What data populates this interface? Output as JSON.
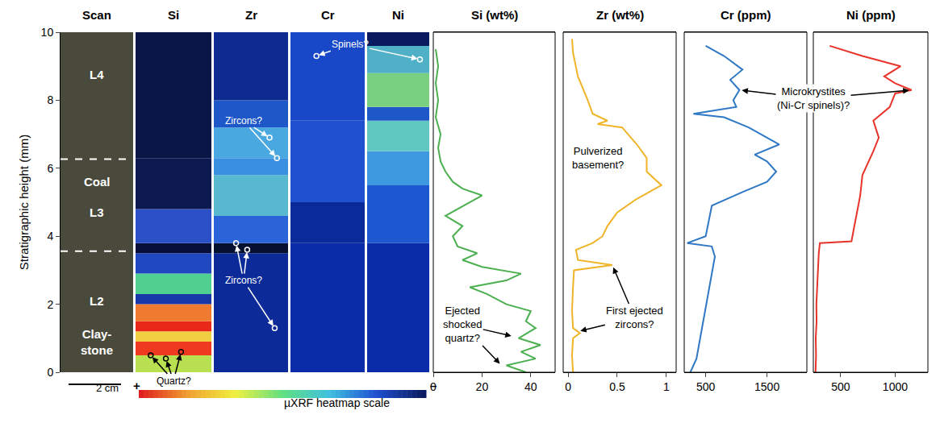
{
  "chart_data": {
    "type": "line",
    "y_title": "Stratigraphic height (mm)",
    "ylim": [
      0,
      10
    ],
    "yticks": [
      0,
      2,
      4,
      6,
      8,
      10
    ],
    "grid": false,
    "panels": [
      {
        "title": "Scan",
        "kind": "scan",
        "color": "#4a4a3c",
        "tick_labels": false,
        "line_style": "dash",
        "boundaries": [
          3.56,
          6.27
        ],
        "layer_labels": [
          {
            "text": "L4",
            "y": 8.75
          },
          {
            "text": "Coal",
            "y": 5.6
          },
          {
            "text": "L3",
            "y": 4.7
          },
          {
            "text": "L2",
            "y": 2.1
          },
          {
            "text": "Clay-\nstone",
            "y": 0.9
          }
        ]
      },
      {
        "title": "Si",
        "kind": "image",
        "tick_labels": false,
        "bands": [
          {
            "y0": 0,
            "y1": 0.5,
            "color": "#b8e050"
          },
          {
            "y0": 0.5,
            "y1": 0.9,
            "color": "#f03a20"
          },
          {
            "y0": 0.9,
            "y1": 1.2,
            "color": "#f0d040"
          },
          {
            "y0": 1.2,
            "y1": 1.5,
            "color": "#e82818"
          },
          {
            "y0": 1.5,
            "y1": 2.0,
            "color": "#f07a30"
          },
          {
            "y0": 2.0,
            "y1": 2.3,
            "color": "#1838a8"
          },
          {
            "y0": 2.3,
            "y1": 2.9,
            "color": "#50d090"
          },
          {
            "y0": 2.9,
            "y1": 3.5,
            "color": "#2048c0"
          },
          {
            "y0": 3.5,
            "y1": 3.8,
            "color": "#08103a"
          },
          {
            "y0": 3.8,
            "y1": 4.8,
            "color": "#2a50c8"
          },
          {
            "y0": 4.8,
            "y1": 6.3,
            "color": "#0c1850"
          },
          {
            "y0": 6.3,
            "y1": 10,
            "color": "#0a1548"
          }
        ]
      },
      {
        "title": "Zr",
        "kind": "image",
        "tick_labels": false,
        "bands": [
          {
            "y0": 0,
            "y1": 3.5,
            "color": "#0c2a98"
          },
          {
            "y0": 3.5,
            "y1": 3.8,
            "color": "#061030"
          },
          {
            "y0": 3.8,
            "y1": 4.6,
            "color": "#2a64d8"
          },
          {
            "y0": 4.6,
            "y1": 5.8,
            "color": "#58b8d0"
          },
          {
            "y0": 5.8,
            "y1": 6.3,
            "color": "#3a90e0"
          },
          {
            "y0": 6.3,
            "y1": 7.2,
            "color": "#4aa8e0"
          },
          {
            "y0": 7.2,
            "y1": 8.0,
            "color": "#1e58c8"
          },
          {
            "y0": 8.0,
            "y1": 10,
            "color": "#0c2a90"
          }
        ]
      },
      {
        "title": "Cr",
        "kind": "image",
        "tick_labels": false,
        "bands": [
          {
            "y0": 0,
            "y1": 3.8,
            "color": "#0a2ca8"
          },
          {
            "y0": 3.8,
            "y1": 5.0,
            "color": "#0a2a9a"
          },
          {
            "y0": 5.0,
            "y1": 7.4,
            "color": "#1e50d0"
          },
          {
            "y0": 7.4,
            "y1": 10,
            "color": "#1848c8"
          }
        ]
      },
      {
        "title": "Ni",
        "kind": "image",
        "tick_labels": false,
        "bands": [
          {
            "y0": 0,
            "y1": 3.8,
            "color": "#0a2ca8"
          },
          {
            "y0": 3.8,
            "y1": 5.5,
            "color": "#1e58d0"
          },
          {
            "y0": 5.5,
            "y1": 6.5,
            "color": "#3e98e0"
          },
          {
            "y0": 6.5,
            "y1": 7.4,
            "color": "#60c8c0"
          },
          {
            "y0": 7.4,
            "y1": 7.8,
            "color": "#1e58c8"
          },
          {
            "y0": 7.8,
            "y1": 8.8,
            "color": "#78d080"
          },
          {
            "y0": 8.8,
            "y1": 9.6,
            "color": "#50b0c8"
          },
          {
            "y0": 9.6,
            "y1": 10,
            "color": "#0a1a60"
          }
        ]
      },
      {
        "title": "Si (wt%)",
        "kind": "line",
        "color": "#4caf50",
        "xlim": [
          0,
          50
        ],
        "xticks": [
          0,
          20,
          40
        ],
        "y": [
          0,
          0.2,
          0.4,
          0.6,
          0.8,
          1.0,
          1.3,
          1.5,
          1.8,
          2.0,
          2.3,
          2.5,
          2.7,
          2.9,
          3.1,
          3.3,
          3.5,
          3.7,
          4.0,
          4.3,
          4.6,
          5.0,
          5.2,
          5.4,
          5.6,
          5.9,
          6.2,
          6.6,
          7.0,
          7.5,
          8.0,
          8.5,
          9.0,
          9.5
        ],
        "x": [
          38,
          30,
          42,
          36,
          44,
          35,
          42,
          38,
          40,
          30,
          22,
          15,
          30,
          36,
          20,
          12,
          18,
          10,
          8,
          12,
          5,
          15,
          20,
          12,
          8,
          5,
          3,
          2,
          3,
          1,
          2,
          1,
          2,
          1
        ]
      },
      {
        "title": "Zr (wt%)",
        "kind": "line",
        "color": "#f0b429",
        "xlim": [
          -0.05,
          1.1
        ],
        "xticks": [
          0,
          0.5,
          1
        ],
        "y": [
          0,
          0.5,
          1.0,
          1.15,
          1.3,
          1.8,
          2.5,
          3.0,
          3.15,
          3.3,
          3.6,
          3.8,
          4.0,
          4.3,
          4.7,
          5.1,
          5.5,
          5.9,
          6.3,
          6.7,
          7.2,
          7.3,
          7.4,
          7.6,
          8.0,
          8.7,
          9.4,
          9.8
        ],
        "x": [
          0.05,
          0.04,
          0.05,
          0.12,
          0.05,
          0.04,
          0.05,
          0.06,
          0.45,
          0.1,
          0.08,
          0.25,
          0.35,
          0.4,
          0.5,
          0.7,
          0.95,
          0.8,
          0.8,
          0.7,
          0.55,
          0.3,
          0.4,
          0.25,
          0.2,
          0.1,
          0.05,
          0.04
        ]
      },
      {
        "title": "Cr (ppm)",
        "kind": "line",
        "color": "#2f78c4",
        "xlim": [
          150,
          2150
        ],
        "xticks": [
          500,
          1500
        ],
        "y": [
          0,
          0.4,
          0.9,
          1.4,
          1.8,
          2.3,
          2.9,
          3.4,
          3.7,
          3.8,
          4.0,
          4.5,
          4.9,
          5.3,
          5.6,
          5.9,
          6.2,
          6.4,
          6.7,
          7.0,
          7.2,
          7.5,
          7.6,
          7.8,
          8.0,
          8.3,
          8.6,
          8.9,
          9.3,
          9.6
        ],
        "x": [
          250,
          350,
          400,
          450,
          500,
          550,
          600,
          650,
          600,
          200,
          500,
          550,
          600,
          1100,
          1500,
          1650,
          1500,
          1300,
          1700,
          1400,
          1200,
          800,
          300,
          1000,
          950,
          1050,
          900,
          1100,
          800,
          500
        ]
      },
      {
        "title": "Ni (ppm)",
        "kind": "line",
        "color": "#e8332a",
        "xlim": [
          250,
          1300
        ],
        "xticks": [
          500,
          1000
        ],
        "y": [
          0,
          0.5,
          1.0,
          1.5,
          2.0,
          2.5,
          3.0,
          3.5,
          3.8,
          3.85,
          4.2,
          4.7,
          5.2,
          5.8,
          6.5,
          6.9,
          7.4,
          7.8,
          8.2,
          8.3,
          8.5,
          8.7,
          9.0,
          9.3,
          9.6
        ],
        "x": [
          270,
          275,
          272,
          280,
          278,
          285,
          290,
          300,
          310,
          600,
          620,
          650,
          680,
          700,
          800,
          850,
          800,
          950,
          1000,
          1150,
          1000,
          900,
          1050,
          700,
          400
        ]
      }
    ],
    "annotations": [
      {
        "text": "Spinels?",
        "panel": 3,
        "x": 0.8,
        "y": 9.65,
        "color": "#ffffff",
        "arrows": [
          {
            "panel": 3,
            "x": 0.35,
            "y": 9.3
          },
          {
            "panel": 4,
            "x": 0.85,
            "y": 9.2
          }
        ]
      },
      {
        "text": "Zircons?",
        "panel": 2,
        "x": 0.4,
        "y": 7.4,
        "color": "#ffffff",
        "arrows": [
          {
            "panel": 2,
            "x": 0.75,
            "y": 6.9
          },
          {
            "panel": 2,
            "x": 0.85,
            "y": 6.3
          }
        ]
      },
      {
        "text": "Zircons?",
        "panel": 2,
        "x": 0.4,
        "y": 2.7,
        "color": "#ffffff",
        "arrows": [
          {
            "panel": 2,
            "x": 0.3,
            "y": 3.8
          },
          {
            "panel": 2,
            "x": 0.45,
            "y": 3.6
          },
          {
            "panel": 2,
            "x": 0.82,
            "y": 1.3
          }
        ]
      },
      {
        "text": "Quartz?",
        "panel": 1,
        "x": 0.5,
        "y": -0.25,
        "color": "#000000",
        "arrows": [
          {
            "panel": 1,
            "x": 0.2,
            "y": 0.5
          },
          {
            "panel": 1,
            "x": 0.4,
            "y": 0.4
          },
          {
            "panel": 1,
            "x": 0.6,
            "y": 0.6
          }
        ]
      },
      {
        "text": "Ejected\nshocked\nquartz?",
        "panel": 5,
        "x": 12,
        "y": 1.4,
        "color": "#000000",
        "arrows": [
          {
            "panel": 5,
            "x": 33,
            "y": 1.05
          },
          {
            "panel": 5,
            "x": 28,
            "y": 0.2
          }
        ]
      },
      {
        "text": "Pulverized\nbasement?",
        "panel": 6,
        "x": 0.3,
        "y": 6.3,
        "color": "#000000"
      },
      {
        "text": "First ejected\nzircons?",
        "panel": 6,
        "x": 0.68,
        "y": 1.6,
        "color": "#000000",
        "arrows": [
          {
            "panel": 6,
            "x": 0.45,
            "y": 3.15
          },
          {
            "panel": 6,
            "x": 0.1,
            "y": 1.2
          }
        ]
      },
      {
        "text": "Microkrystites\n(Ni-Cr spinels)?",
        "panel": 8,
        "x": 250,
        "y": 8.05,
        "color": "#000000",
        "arrows": [
          {
            "panel": 7,
            "x": 1050,
            "y": 8.3
          },
          {
            "panel": 8,
            "x": 1150,
            "y": 8.3
          }
        ]
      }
    ],
    "scale_bar": "2 cm",
    "heatmap_scale": {
      "label": "µXRF heatmap scale",
      "left_label": "+",
      "right_label": "–",
      "colors": [
        "#e02020",
        "#f0a030",
        "#f0f040",
        "#60e080",
        "#40c0e0",
        "#2050d0",
        "#0a1a60"
      ]
    }
  }
}
